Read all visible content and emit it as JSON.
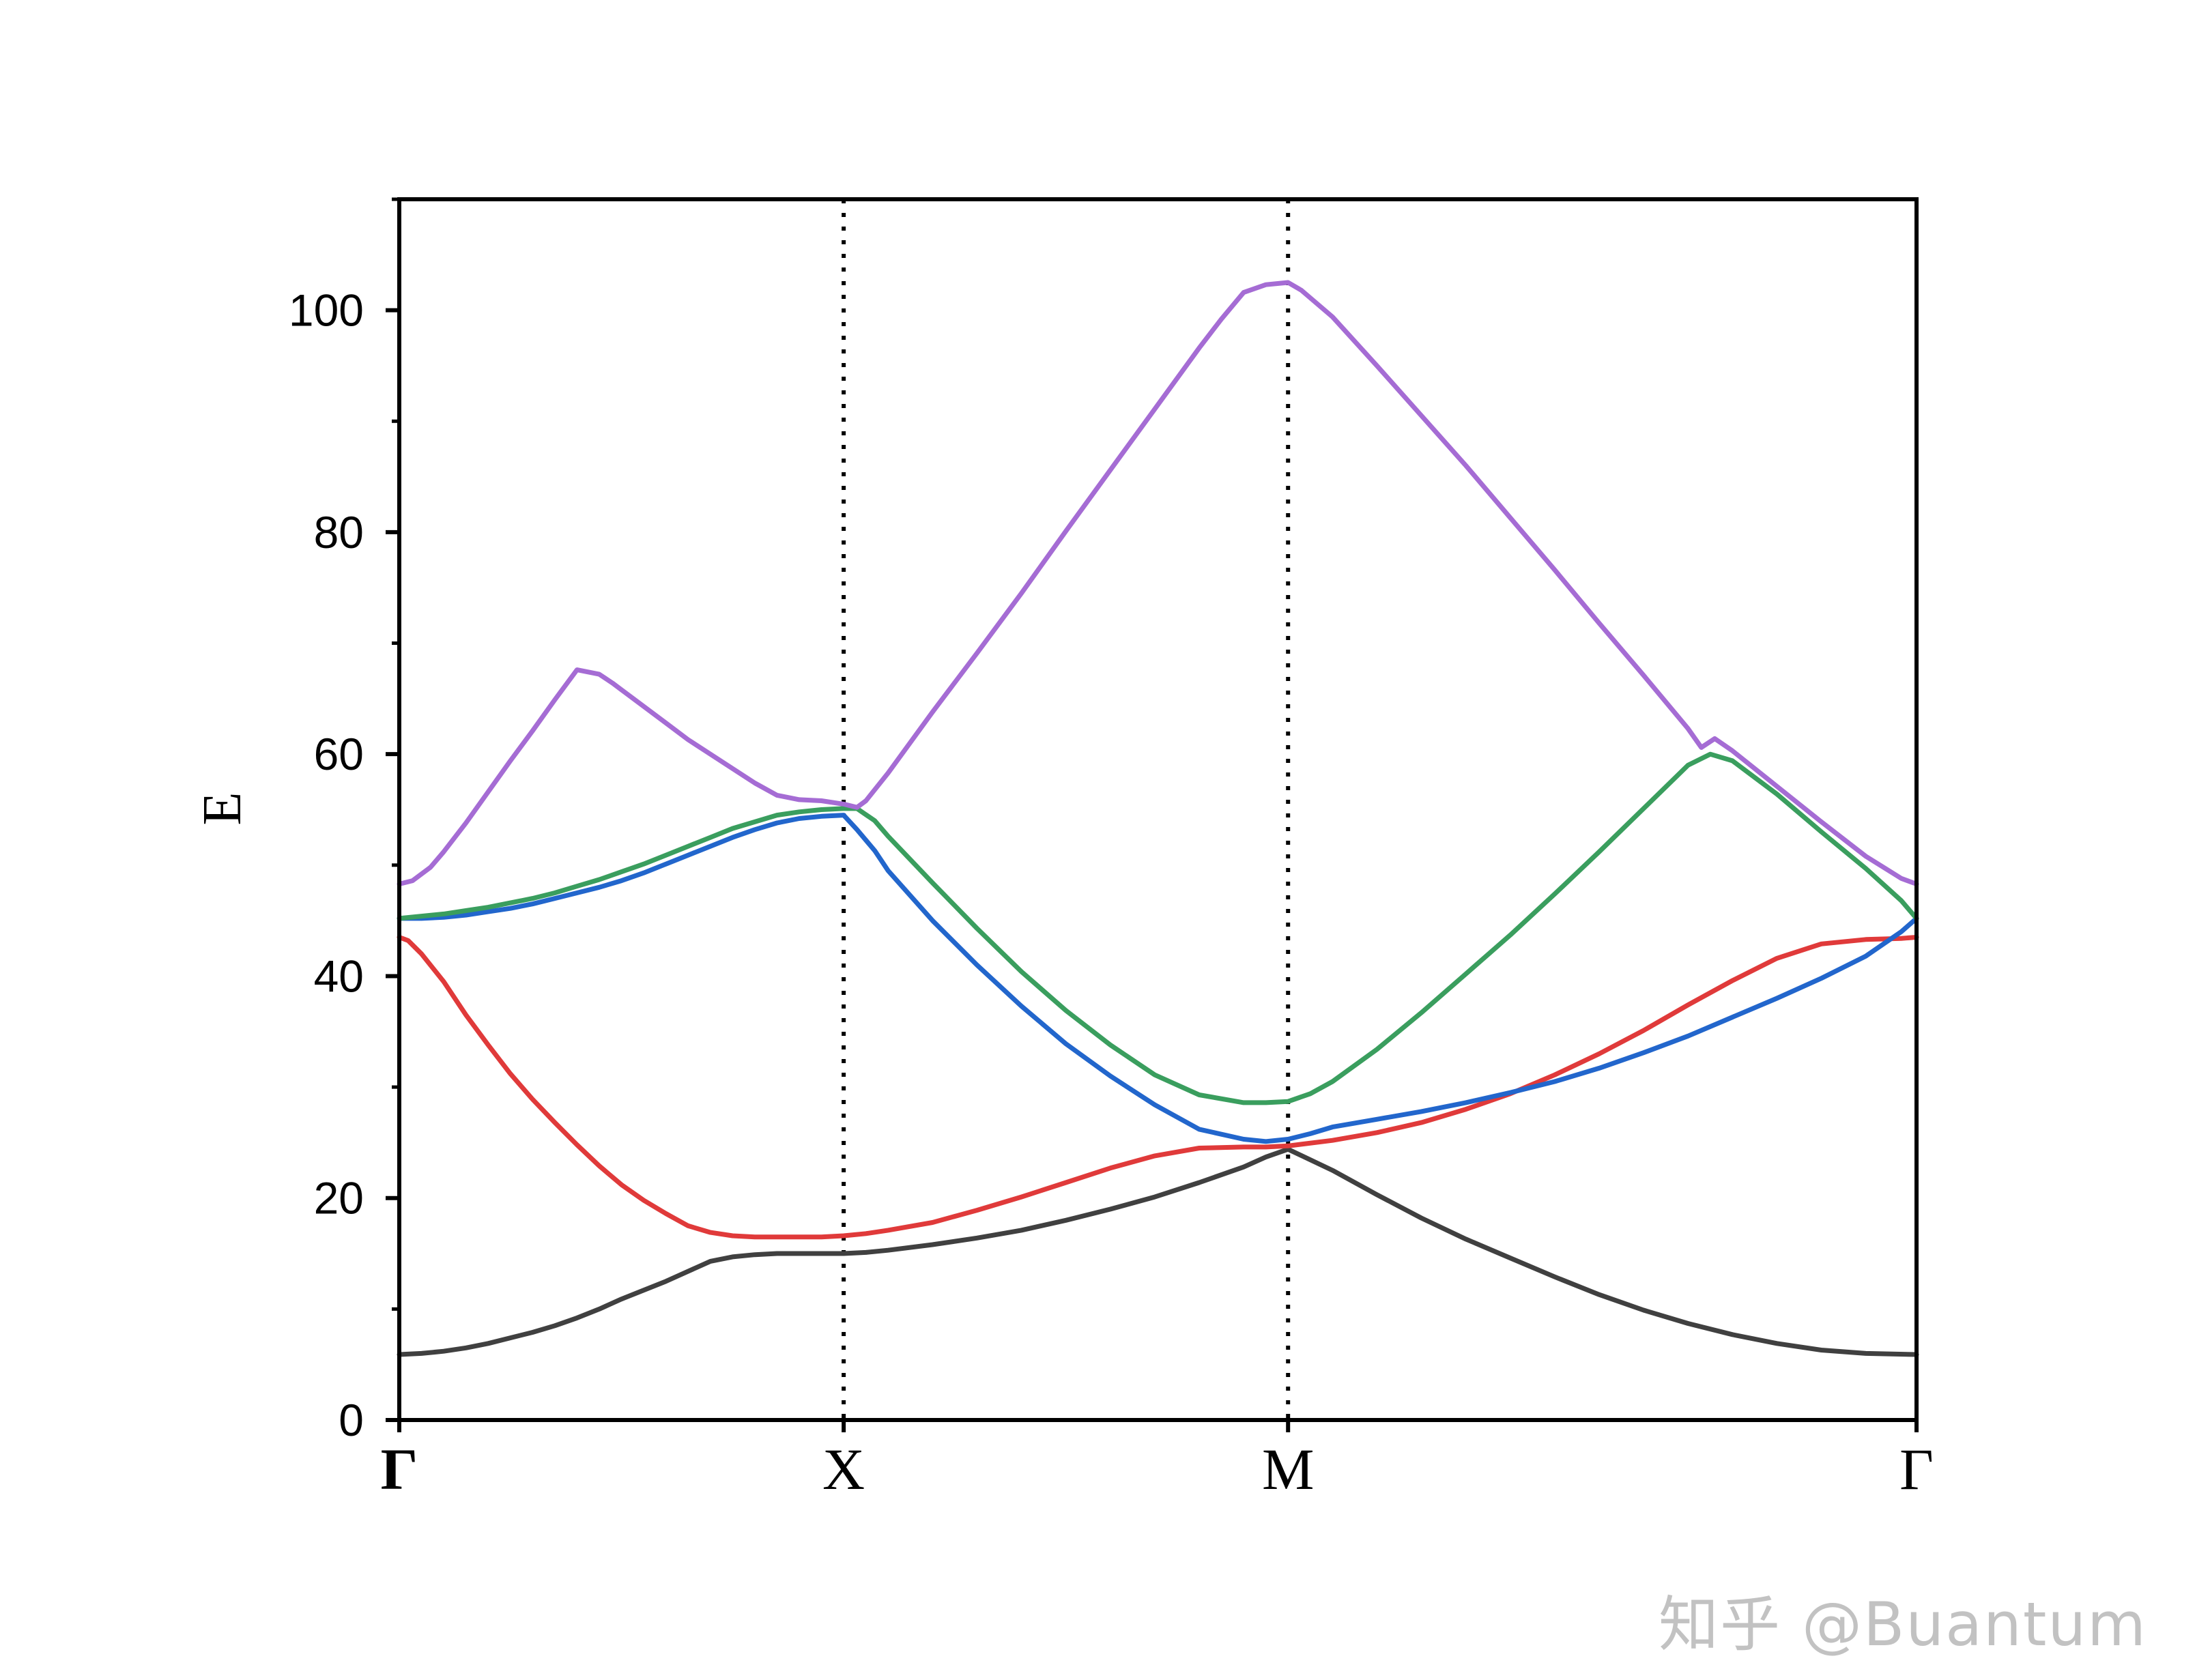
{
  "chart_data": {
    "type": "line",
    "title": "",
    "xlabel": "",
    "ylabel": "E",
    "ylim": [
      0,
      110
    ],
    "xlim": [
      0,
      3.4142
    ],
    "yticks": [
      0,
      20,
      40,
      60,
      80,
      100
    ],
    "yminor_ticks": [
      10,
      30,
      50,
      70,
      90,
      110
    ],
    "kpoints": [
      {
        "label": "Γ",
        "x": 0
      },
      {
        "label": "X",
        "x": 1
      },
      {
        "label": "M",
        "x": 2
      },
      {
        "label": "Γ",
        "x": 3.4142
      }
    ],
    "grid": false,
    "series": [
      {
        "color": "#404040",
        "x": [
          0,
          0.05,
          0.1,
          0.15,
          0.2,
          0.25,
          0.3,
          0.35,
          0.4,
          0.45,
          0.5,
          0.55,
          0.6,
          0.65,
          0.7,
          0.75,
          0.8,
          0.85,
          0.9,
          0.95,
          1.0,
          1.05,
          1.1,
          1.2,
          1.3,
          1.4,
          1.5,
          1.6,
          1.7,
          1.8,
          1.9,
          1.95,
          2.0,
          2.1,
          2.2,
          2.3,
          2.4,
          2.5,
          2.6,
          2.7,
          2.8,
          2.9,
          3.0,
          3.1,
          3.2,
          3.3,
          3.4142
        ],
        "y": [
          5.9,
          6.0,
          6.2,
          6.5,
          6.9,
          7.4,
          7.9,
          8.5,
          9.2,
          10.0,
          10.9,
          11.7,
          12.5,
          13.4,
          14.3,
          14.7,
          14.9,
          15.0,
          15.0,
          15.0,
          15.0,
          15.1,
          15.3,
          15.8,
          16.4,
          17.1,
          18.0,
          19.0,
          20.1,
          21.4,
          22.8,
          23.7,
          24.4,
          22.5,
          20.3,
          18.2,
          16.3,
          14.6,
          12.9,
          11.3,
          9.9,
          8.7,
          7.7,
          6.9,
          6.3,
          6.0,
          5.9
        ]
      },
      {
        "color": "#e03a3a",
        "x": [
          0,
          0.02,
          0.05,
          0.1,
          0.15,
          0.2,
          0.25,
          0.3,
          0.35,
          0.4,
          0.45,
          0.5,
          0.55,
          0.6,
          0.65,
          0.7,
          0.75,
          0.8,
          0.85,
          0.9,
          0.95,
          1.0,
          1.05,
          1.1,
          1.2,
          1.3,
          1.4,
          1.5,
          1.6,
          1.7,
          1.8,
          1.9,
          1.95,
          2.0,
          2.1,
          2.2,
          2.3,
          2.4,
          2.5,
          2.6,
          2.7,
          2.8,
          2.9,
          3.0,
          3.1,
          3.2,
          3.3,
          3.38,
          3.4142
        ],
        "y": [
          43.5,
          43.2,
          42.0,
          39.5,
          36.5,
          33.8,
          31.2,
          28.9,
          26.8,
          24.8,
          22.9,
          21.2,
          19.8,
          18.6,
          17.5,
          16.9,
          16.6,
          16.5,
          16.5,
          16.5,
          16.5,
          16.6,
          16.8,
          17.1,
          17.8,
          18.9,
          20.1,
          21.4,
          22.7,
          23.8,
          24.5,
          24.6,
          24.6,
          24.7,
          25.2,
          25.9,
          26.8,
          28.0,
          29.4,
          31.1,
          33.0,
          35.1,
          37.4,
          39.6,
          41.6,
          42.9,
          43.3,
          43.4,
          43.5
        ]
      },
      {
        "color": "#2266cc",
        "x": [
          0,
          0.05,
          0.1,
          0.15,
          0.2,
          0.25,
          0.3,
          0.35,
          0.4,
          0.45,
          0.5,
          0.55,
          0.6,
          0.65,
          0.7,
          0.75,
          0.8,
          0.85,
          0.9,
          0.95,
          1.0,
          1.03,
          1.07,
          1.1,
          1.2,
          1.3,
          1.4,
          1.5,
          1.6,
          1.7,
          1.8,
          1.9,
          1.95,
          2.0,
          2.05,
          2.1,
          2.2,
          2.3,
          2.4,
          2.5,
          2.6,
          2.7,
          2.8,
          2.9,
          3.0,
          3.1,
          3.2,
          3.3,
          3.38,
          3.4142
        ],
        "y": [
          45.2,
          45.2,
          45.3,
          45.5,
          45.8,
          46.1,
          46.5,
          47.0,
          47.5,
          48.0,
          48.6,
          49.3,
          50.1,
          50.9,
          51.7,
          52.5,
          53.2,
          53.8,
          54.2,
          54.4,
          54.5,
          53.2,
          51.3,
          49.5,
          45.0,
          41.0,
          37.3,
          33.9,
          31.0,
          28.4,
          26.2,
          25.3,
          25.1,
          25.3,
          25.8,
          26.4,
          27.1,
          27.8,
          28.6,
          29.5,
          30.5,
          31.7,
          33.1,
          34.6,
          36.3,
          38.0,
          39.8,
          41.8,
          44.0,
          45.2
        ]
      },
      {
        "color": "#3a9e5e",
        "x": [
          0,
          0.05,
          0.1,
          0.15,
          0.2,
          0.25,
          0.3,
          0.35,
          0.4,
          0.45,
          0.5,
          0.55,
          0.6,
          0.65,
          0.7,
          0.75,
          0.8,
          0.85,
          0.9,
          0.95,
          1.0,
          1.03,
          1.07,
          1.1,
          1.2,
          1.3,
          1.4,
          1.5,
          1.6,
          1.7,
          1.8,
          1.9,
          1.95,
          2.0,
          2.05,
          2.1,
          2.2,
          2.3,
          2.4,
          2.5,
          2.6,
          2.7,
          2.8,
          2.9,
          2.95,
          3.0,
          3.1,
          3.2,
          3.3,
          3.38,
          3.4142
        ],
        "y": [
          45.2,
          45.4,
          45.6,
          45.9,
          46.2,
          46.6,
          47.0,
          47.5,
          48.1,
          48.7,
          49.4,
          50.1,
          50.9,
          51.7,
          52.5,
          53.3,
          53.9,
          54.5,
          54.8,
          55.0,
          55.1,
          55.1,
          54.0,
          52.6,
          48.4,
          44.3,
          40.4,
          36.9,
          33.8,
          31.1,
          29.3,
          28.6,
          28.6,
          28.7,
          29.4,
          30.5,
          33.4,
          36.7,
          40.2,
          43.7,
          47.4,
          51.2,
          55.1,
          59.0,
          60.0,
          59.4,
          56.4,
          53.0,
          49.7,
          46.8,
          45.2
        ]
      },
      {
        "color": "#a56cd4",
        "x": [
          0,
          0.03,
          0.07,
          0.1,
          0.15,
          0.2,
          0.25,
          0.3,
          0.35,
          0.4,
          0.45,
          0.48,
          0.5,
          0.55,
          0.6,
          0.65,
          0.7,
          0.75,
          0.8,
          0.85,
          0.9,
          0.95,
          1.0,
          1.03,
          1.05,
          1.1,
          1.2,
          1.3,
          1.4,
          1.5,
          1.6,
          1.7,
          1.8,
          1.85,
          1.9,
          1.95,
          2.0,
          2.03,
          2.1,
          2.2,
          2.3,
          2.4,
          2.5,
          2.6,
          2.7,
          2.8,
          2.9,
          2.93,
          2.96,
          3.0,
          3.1,
          3.2,
          3.3,
          3.38,
          3.4142
        ],
        "y": [
          48.3,
          48.6,
          49.8,
          51.2,
          53.8,
          56.6,
          59.4,
          62.1,
          64.9,
          67.6,
          67.2,
          66.4,
          65.8,
          64.3,
          62.8,
          61.3,
          60.0,
          58.7,
          57.4,
          56.3,
          55.9,
          55.8,
          55.5,
          55.2,
          55.8,
          58.3,
          63.8,
          69.1,
          74.5,
          80.1,
          85.6,
          91.1,
          96.6,
          99.2,
          101.6,
          102.3,
          102.5,
          101.8,
          99.4,
          95.0,
          90.5,
          86.0,
          81.3,
          76.6,
          71.8,
          67.1,
          62.3,
          60.6,
          61.4,
          60.3,
          57.1,
          53.9,
          50.8,
          48.8,
          48.3
        ]
      }
    ]
  },
  "watermark": {
    "text": "知乎 @Buantum"
  }
}
